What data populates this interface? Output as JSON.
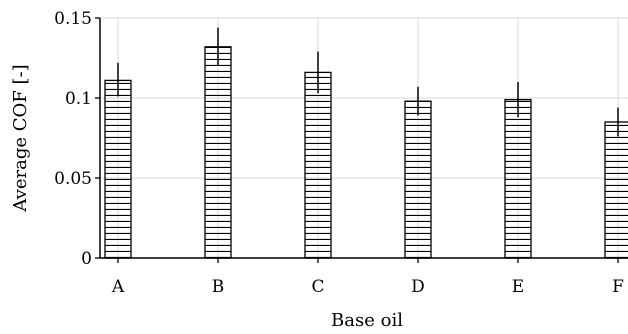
{
  "chart_data": {
    "type": "bar",
    "categories": [
      "A",
      "B",
      "C",
      "D",
      "E",
      "F"
    ],
    "values": [
      0.111,
      0.132,
      0.116,
      0.098,
      0.099,
      0.085
    ],
    "error_upper": [
      0.122,
      0.144,
      0.129,
      0.107,
      0.11,
      0.094
    ],
    "error_lower": [
      0.101,
      0.12,
      0.103,
      0.089,
      0.088,
      0.076
    ],
    "xlabel": "Base oil",
    "ylabel": "Average COF [-]",
    "ylim": [
      0,
      0.15
    ],
    "yticks": [
      0,
      0.05,
      0.1,
      0.15
    ],
    "ytick_labels": [
      "0",
      "0.05",
      "0.1",
      "0.15"
    ],
    "grid": true,
    "bar_fill": "horizontal-hatch",
    "colors": {
      "bar_stroke": "#000000",
      "grid": "#d9d9d9",
      "axis": "#000000"
    }
  }
}
